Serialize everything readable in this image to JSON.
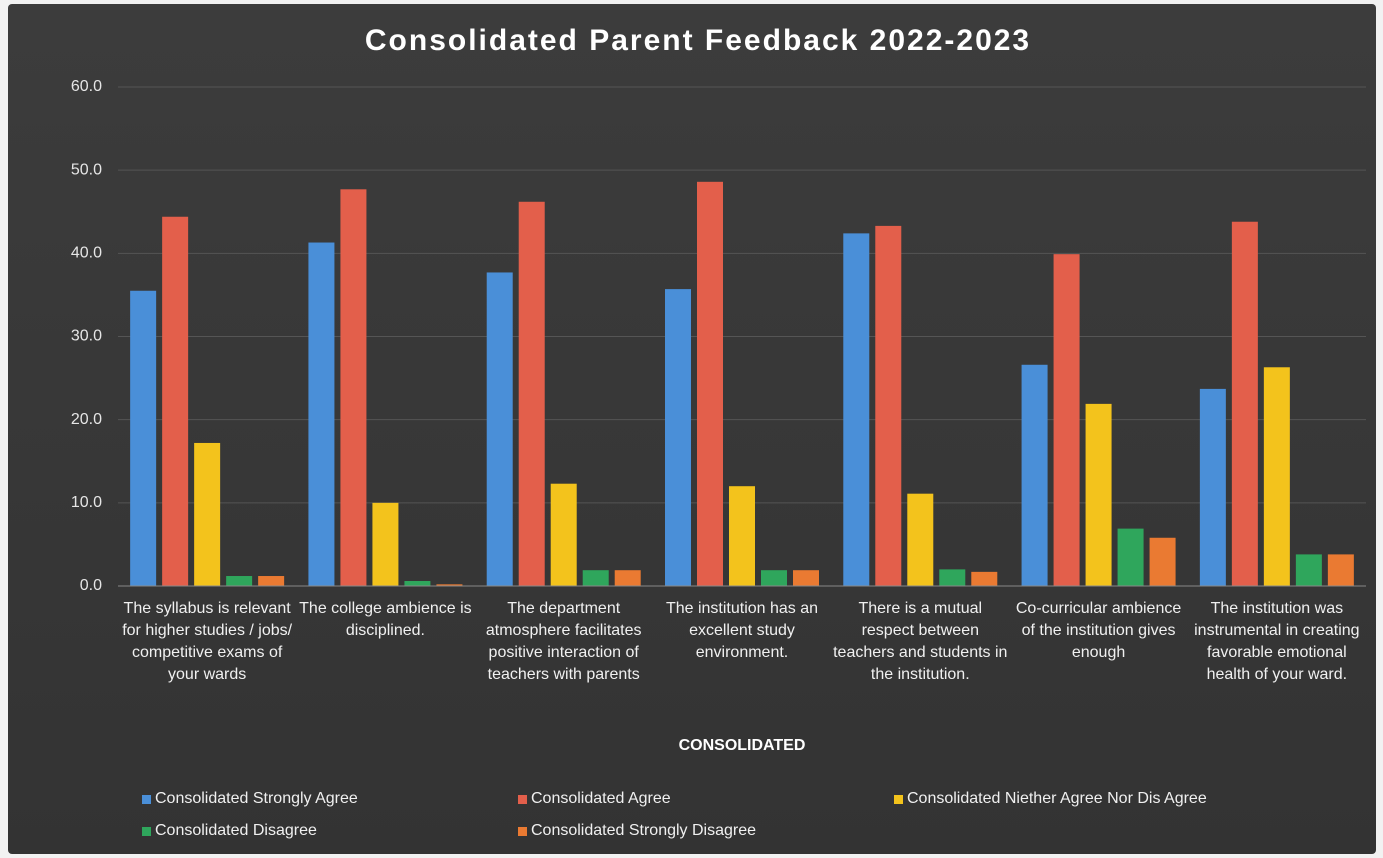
{
  "chart_data": {
    "type": "bar",
    "title": "Consolidated Parent Feedback 2022-2023",
    "x_label": "CONSOLIDATED",
    "categories": [
      "The syllabus is relevant for higher studies / jobs/ competitive exams of your wards",
      "The college ambience is disciplined.",
      "The department atmosphere facilitates positive interaction of teachers with parents",
      "The institution has an excellent study environment.",
      "There is a mutual respect between teachers and students in the institution.",
      "Co-curricular ambience of the institution gives enough",
      "The institution was instrumental in creating favorable emotional health of your ward."
    ],
    "series": [
      {
        "name": "Consolidated Strongly Agree",
        "color": "#4a8fd8",
        "values": [
          35.5,
          41.3,
          37.7,
          35.7,
          42.4,
          26.6,
          23.7
        ]
      },
      {
        "name": "Consolidated Agree",
        "color": "#e35f4b",
        "values": [
          44.4,
          47.7,
          46.2,
          48.6,
          43.3,
          39.9,
          43.8
        ]
      },
      {
        "name": "Consolidated Niether Agree Nor Dis Agree",
        "color": "#f3c31c",
        "values": [
          17.2,
          10.0,
          12.3,
          12.0,
          11.1,
          21.9,
          26.3
        ]
      },
      {
        "name": "Consolidated Disagree",
        "color": "#2fa65c",
        "values": [
          1.2,
          0.6,
          1.9,
          1.9,
          2.0,
          6.9,
          3.8
        ]
      },
      {
        "name": "Consolidated Strongly Disagree",
        "color": "#ea7a32",
        "values": [
          1.2,
          0.2,
          1.9,
          1.9,
          1.7,
          5.8,
          3.8
        ]
      }
    ],
    "ylim": [
      0,
      60
    ],
    "yticks": [
      {
        "value": 0,
        "label": "0.0"
      },
      {
        "value": 10,
        "label": "10.0"
      },
      {
        "value": 20,
        "label": "20.0"
      },
      {
        "value": 30,
        "label": "30.0"
      },
      {
        "value": 40,
        "label": "40.0"
      },
      {
        "value": 50,
        "label": "50.0"
      },
      {
        "value": 60,
        "label": "60.0"
      }
    ],
    "grid": true
  }
}
